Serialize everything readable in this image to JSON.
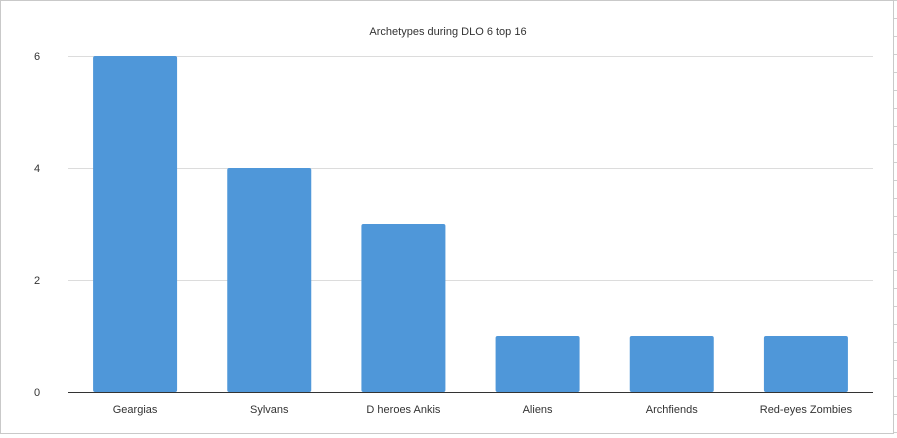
{
  "chart_data": {
    "type": "bar",
    "title": "Archetypes during DLO 6 top 16",
    "categories": [
      "Geargias",
      "Sylvans",
      "D heroes Ankis",
      "Aliens",
      "Archfiends",
      "Red-eyes Zombies"
    ],
    "values": [
      6,
      4,
      3,
      1,
      1,
      1
    ],
    "ylim": [
      0,
      6
    ],
    "yticks": [
      "0",
      "2",
      "4",
      "6"
    ],
    "xlabel": "",
    "ylabel": "",
    "grid": true,
    "legend": "none",
    "bar_color": "#4f97d9"
  }
}
